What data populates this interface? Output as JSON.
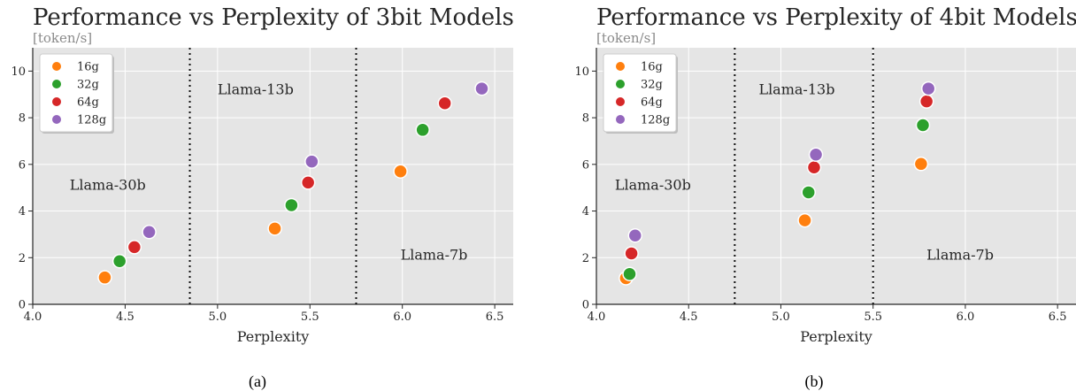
{
  "colors": {
    "background": "#e5e5e5",
    "grid": "#ffffff",
    "16g": "#ff7f0e",
    "32g": "#2ca02c",
    "64g": "#d62728",
    "128g": "#9467bd"
  },
  "chart_data": [
    {
      "type": "scatter",
      "title": "Performance vs Perplexity of 3bit Models",
      "subtitle": "[token/s]",
      "xlabel": "Perplexity",
      "ylabel": "",
      "xlim": [
        4.0,
        6.6
      ],
      "ylim": [
        0,
        11
      ],
      "xticks": [
        "4.0",
        "4.5",
        "5.0",
        "5.5",
        "6.0",
        "6.5"
      ],
      "yticks": [
        "0",
        "2",
        "4",
        "6",
        "8",
        "10"
      ],
      "grid": true,
      "legend": "top-left",
      "caption": "(a)",
      "dividers": [
        4.85,
        5.75
      ],
      "regions": [
        {
          "label": "Llama-30b",
          "x": 4.2,
          "y": 5.1
        },
        {
          "label": "Llama-13b",
          "x": 5.0,
          "y": 9.2
        },
        {
          "label": "Llama-7b",
          "x": 5.99,
          "y": 2.1
        }
      ],
      "series": [
        {
          "name": "16g",
          "points": [
            [
              4.39,
              1.15
            ],
            [
              5.31,
              3.25
            ],
            [
              5.99,
              5.7
            ]
          ]
        },
        {
          "name": "32g",
          "points": [
            [
              4.47,
              1.85
            ],
            [
              5.4,
              4.25
            ],
            [
              6.11,
              7.48
            ]
          ]
        },
        {
          "name": "64g",
          "points": [
            [
              4.55,
              2.45
            ],
            [
              5.49,
              5.22
            ],
            [
              6.23,
              8.62
            ]
          ]
        },
        {
          "name": "128g",
          "points": [
            [
              4.63,
              3.1
            ],
            [
              5.51,
              6.12
            ],
            [
              6.43,
              9.25
            ]
          ]
        }
      ]
    },
    {
      "type": "scatter",
      "title": "Performance vs Perplexity of 4bit Models",
      "subtitle": "[token/s]",
      "xlabel": "Perplexity",
      "ylabel": "",
      "xlim": [
        4.0,
        6.6
      ],
      "ylim": [
        0,
        11
      ],
      "xticks": [
        "4.0",
        "4.5",
        "5.0",
        "5.5",
        "6.0",
        "6.5"
      ],
      "yticks": [
        "0",
        "2",
        "4",
        "6",
        "8",
        "10"
      ],
      "grid": true,
      "legend": "top-left",
      "caption": "(b)",
      "dividers": [
        4.75,
        5.5
      ],
      "regions": [
        {
          "label": "Llama-30b",
          "x": 4.1,
          "y": 5.1
        },
        {
          "label": "Llama-13b",
          "x": 4.88,
          "y": 9.2
        },
        {
          "label": "Llama-7b",
          "x": 5.79,
          "y": 2.1
        }
      ],
      "series": [
        {
          "name": "16g",
          "points": [
            [
              4.16,
              1.12
            ],
            [
              5.13,
              3.6
            ],
            [
              5.76,
              6.02
            ]
          ]
        },
        {
          "name": "32g",
          "points": [
            [
              4.18,
              1.3
            ],
            [
              5.15,
              4.8
            ],
            [
              5.77,
              7.68
            ]
          ]
        },
        {
          "name": "64g",
          "points": [
            [
              4.19,
              2.18
            ],
            [
              5.18,
              5.87
            ],
            [
              5.79,
              8.7
            ]
          ]
        },
        {
          "name": "128g",
          "points": [
            [
              4.21,
              2.95
            ],
            [
              5.19,
              6.42
            ],
            [
              5.8,
              9.25
            ]
          ]
        }
      ]
    }
  ]
}
